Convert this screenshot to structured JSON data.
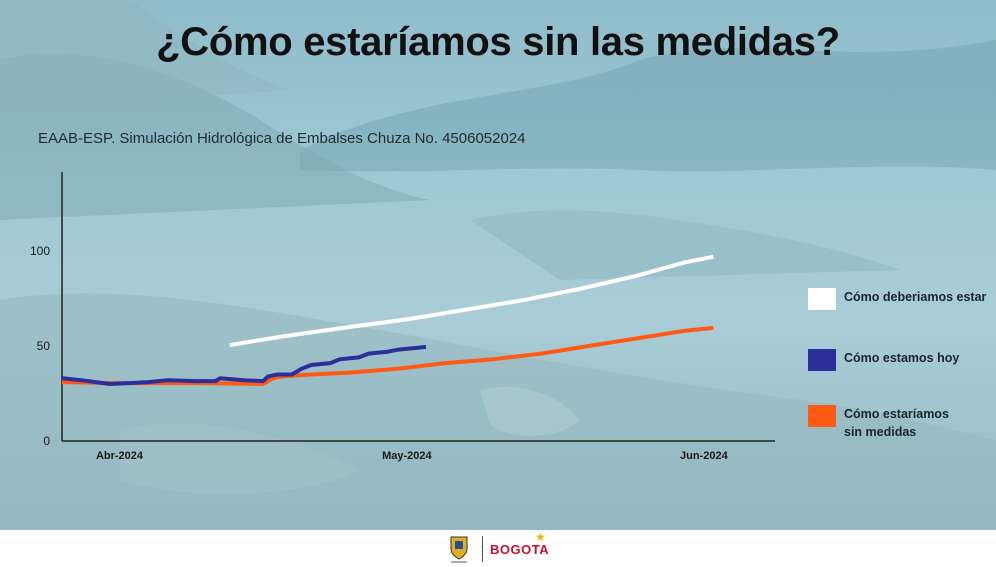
{
  "slide": {
    "title": "¿Cómo estaríamos sin las medidas?",
    "subtitle": "EAAB-ESP. Simulación Hidrológica de Embalses Chuza No. 4506052024"
  },
  "footer": {
    "logo_text": "BOGOTA"
  },
  "colors": {
    "deberiamos": "#ffffff",
    "hoy": "#2b2f9a",
    "sin_medidas": "#ff5a14",
    "axis": "#222222"
  },
  "chart_data": {
    "type": "line",
    "title": "",
    "xlabel": "",
    "ylabel": "",
    "ylim": [
      0,
      120
    ],
    "yticks": [
      0,
      50,
      100
    ],
    "x_ticks": [
      "Abr-2024",
      "May-2024",
      "Jun-2024"
    ],
    "x_note": "x values are day offsets from 2024-03-26; Abr-2024 = day 6, May-2024 = day 36, Jun-2024 = day 67",
    "grid": false,
    "legend_position": "right",
    "series": [
      {
        "name": "Cómo deberiamos estar",
        "color": "#ffffff",
        "points": [
          [
            17.5,
            50.5
          ],
          [
            23,
            55
          ],
          [
            30,
            60
          ],
          [
            36,
            64
          ],
          [
            42,
            69
          ],
          [
            48,
            74
          ],
          [
            54,
            80
          ],
          [
            60,
            87
          ],
          [
            65,
            94
          ],
          [
            68,
            97
          ]
        ]
      },
      {
        "name": "Cómo estamos hoy",
        "color": "#2b2f9a",
        "points": [
          [
            0,
            33
          ],
          [
            2,
            32
          ],
          [
            5,
            30
          ],
          [
            7,
            30.5
          ],
          [
            9,
            31
          ],
          [
            11,
            32
          ],
          [
            14,
            31.5
          ],
          [
            16,
            31.5
          ],
          [
            16.5,
            33
          ],
          [
            19,
            32
          ],
          [
            21,
            31.5
          ],
          [
            21.5,
            34
          ],
          [
            22.5,
            35
          ],
          [
            24,
            35
          ],
          [
            25,
            38
          ],
          [
            26,
            40
          ],
          [
            28,
            41
          ],
          [
            29,
            43
          ],
          [
            31,
            44
          ],
          [
            32,
            46
          ],
          [
            34,
            47
          ],
          [
            35,
            48
          ],
          [
            37,
            49
          ],
          [
            38,
            49.5
          ]
        ]
      },
      {
        "name": "Cómo estaríamos\nsin medidas",
        "color": "#ff5a14",
        "points": [
          [
            0,
            31
          ],
          [
            5,
            30.5
          ],
          [
            10,
            30.5
          ],
          [
            15,
            30.5
          ],
          [
            21,
            30
          ],
          [
            22,
            33
          ],
          [
            23,
            34
          ],
          [
            26,
            35
          ],
          [
            30,
            36
          ],
          [
            35,
            38
          ],
          [
            40,
            41
          ],
          [
            45,
            43
          ],
          [
            50,
            46
          ],
          [
            55,
            50
          ],
          [
            60,
            54
          ],
          [
            65,
            58
          ],
          [
            68,
            59.5
          ]
        ]
      }
    ]
  }
}
